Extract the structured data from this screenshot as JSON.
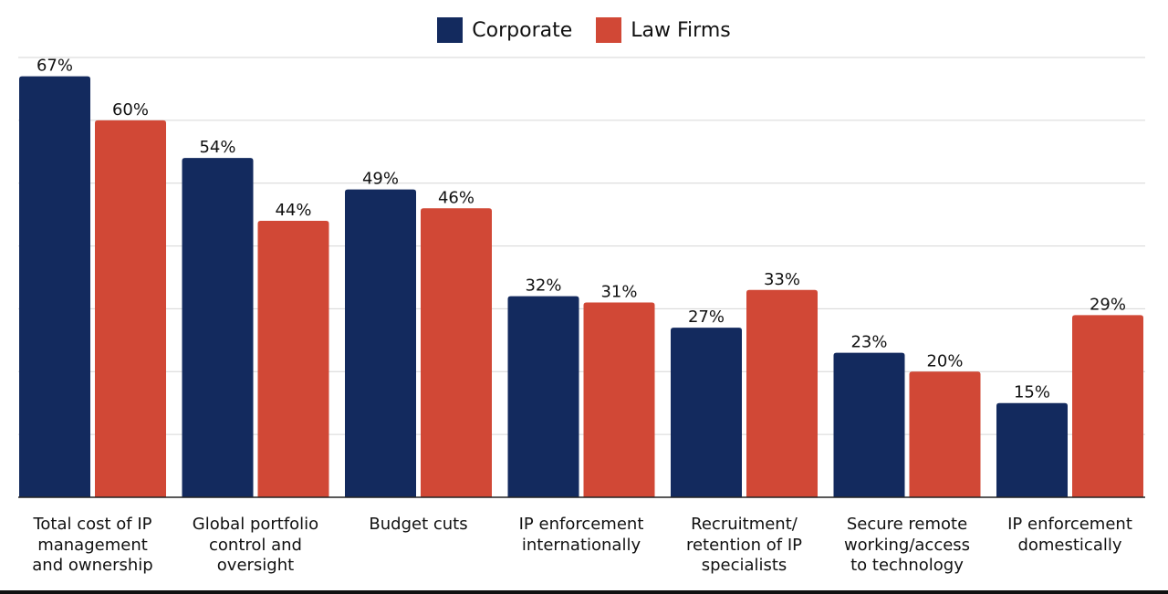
{
  "colors": {
    "corporate": "#132a5e",
    "law_firms": "#d14836",
    "grid": "#d6d6d6",
    "axis": "#222222",
    "text": "#111111"
  },
  "legend": [
    {
      "name": "Corporate",
      "color": "#132a5e"
    },
    {
      "name": "Law Firms",
      "color": "#d14836"
    }
  ],
  "chart_data": {
    "type": "bar",
    "title": "",
    "xlabel": "",
    "ylabel": "",
    "ylim": [
      0,
      70
    ],
    "grid": true,
    "legend_position": "top-center",
    "categories": [
      "Total cost of IP management and ownership",
      "Global portfolio control and oversight",
      "Budget cuts",
      "IP enforcement internationally",
      "Recruitment/ retention of IP specialists",
      "Secure remote working/access to technology",
      "IP enforcement domestically"
    ],
    "category_lines": [
      [
        "Total cost of IP",
        "management",
        "and ownership"
      ],
      [
        "Global portfolio",
        "control and",
        "oversight"
      ],
      [
        "Budget cuts"
      ],
      [
        "IP enforcement",
        "internationally"
      ],
      [
        "Recruitment/",
        "retention of IP",
        "specialists"
      ],
      [
        "Secure remote",
        "working/access",
        "to technology"
      ],
      [
        "IP enforcement",
        "domestically"
      ]
    ],
    "series": [
      {
        "name": "Corporate",
        "values": [
          67,
          54,
          49,
          32,
          27,
          23,
          15
        ],
        "labels": [
          "67%",
          "54%",
          "49%",
          "32%",
          "27%",
          "23%",
          "15%"
        ]
      },
      {
        "name": "Law Firms",
        "values": [
          60,
          44,
          46,
          31,
          33,
          20,
          29
        ],
        "labels": [
          "60%",
          "44%",
          "46%",
          "31%",
          "33%",
          "20%",
          "29%"
        ]
      }
    ]
  }
}
